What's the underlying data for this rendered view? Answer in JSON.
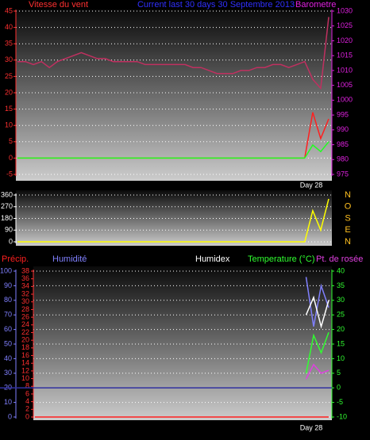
{
  "chart_data": [
    {
      "type": "line",
      "title": "Current last 30 days 30 Septembre 2013",
      "y_label": "Vitesse du vent",
      "y2_label": "Barometre",
      "annotation": "Day 28",
      "ylim": [
        -5,
        45
      ],
      "yticks": [
        -5,
        0,
        5,
        10,
        15,
        20,
        25,
        30,
        35,
        40,
        45
      ],
      "y_color": "#ff3030",
      "y2lim": [
        975,
        1030
      ],
      "y2ticks": [
        975,
        980,
        985,
        990,
        995,
        1000,
        1005,
        1010,
        1015,
        1020,
        1025,
        1030
      ],
      "y2_color": "#e020e0",
      "grid": true,
      "series": [
        {
          "color": "#ff2020",
          "values": [
            0,
            0,
            0,
            0,
            0,
            0,
            0,
            0,
            0,
            0,
            0,
            0,
            0,
            0,
            0,
            0,
            0,
            0,
            0,
            0,
            0,
            0,
            0,
            0,
            0,
            0,
            0,
            0,
            0,
            0,
            0,
            0,
            0,
            0,
            0,
            0,
            0,
            14,
            6,
            12
          ]
        },
        {
          "color": "#20ff20",
          "values": [
            0,
            0,
            0,
            0,
            0,
            0,
            0,
            0,
            0,
            0,
            0,
            0,
            0,
            0,
            0,
            0,
            0,
            0,
            0,
            0,
            0,
            0,
            0,
            0,
            0,
            0,
            0,
            0,
            0,
            0,
            0,
            0,
            0,
            0,
            0,
            0,
            0,
            4,
            2,
            5
          ]
        },
        {
          "color": "#c03060",
          "axis": "y2",
          "values": [
            1013,
            1013,
            1012,
            1013,
            1011,
            1013,
            1014,
            1015,
            1016,
            1015,
            1014,
            1014,
            1013,
            1013,
            1013,
            1013,
            1012,
            1012,
            1012,
            1012,
            1012,
            1012,
            1011,
            1011,
            1010,
            1009,
            1009,
            1009,
            1010,
            1010,
            1011,
            1011,
            1012,
            1012,
            1011,
            1012,
            1013,
            1007,
            1004,
            1028
          ]
        }
      ]
    },
    {
      "type": "line",
      "ylim": [
        0,
        360
      ],
      "yticks": [
        0,
        90,
        180,
        270,
        360
      ],
      "y_color": "#ffffff",
      "direction_labels": [
        "N",
        "E",
        "S",
        "O",
        "N"
      ],
      "direction_color": "#ffc020",
      "grid": true,
      "series": [
        {
          "color": "#ffff00",
          "values": [
            0,
            0,
            0,
            0,
            0,
            0,
            0,
            0,
            0,
            0,
            0,
            0,
            0,
            0,
            0,
            0,
            0,
            0,
            0,
            0,
            0,
            0,
            0,
            0,
            0,
            0,
            0,
            0,
            0,
            0,
            0,
            0,
            0,
            0,
            0,
            0,
            0,
            240,
            90,
            330
          ]
        }
      ]
    },
    {
      "type": "line",
      "annotation": "Day 28",
      "ylim": [
        0,
        100
      ],
      "yticks": [
        0,
        10,
        20,
        30,
        40,
        50,
        60,
        70,
        80,
        90,
        100
      ],
      "y_color": "#8080ff",
      "y2lim": [
        -10,
        40
      ],
      "y2ticks": [
        -10,
        -5,
        0,
        5,
        10,
        15,
        20,
        25,
        30,
        35,
        40
      ],
      "y2_color": "#30ff30",
      "y3lim": [
        0,
        38
      ],
      "y3ticks": [
        0,
        2,
        4,
        6,
        8,
        10,
        12,
        14,
        16,
        18,
        20,
        22,
        24,
        26,
        28,
        30,
        32,
        34,
        36,
        38
      ],
      "y3_color": "#ff3030",
      "grid": true,
      "series": [
        {
          "name": "Précip.",
          "color": "#ff2020",
          "axis": "y3",
          "values": [
            0,
            0,
            0,
            0,
            0,
            0,
            0,
            0,
            0,
            0,
            0,
            0,
            0,
            0,
            0,
            0,
            0,
            0,
            0,
            0,
            0,
            0,
            0,
            0,
            0,
            0,
            0,
            0,
            0,
            0,
            0,
            0,
            0,
            0,
            0,
            0,
            0,
            0,
            0,
            0
          ]
        },
        {
          "name": "Humidité",
          "color": "#8080ff",
          "values": [
            null,
            null,
            null,
            null,
            null,
            null,
            null,
            null,
            null,
            null,
            null,
            null,
            null,
            null,
            null,
            null,
            null,
            null,
            null,
            null,
            null,
            null,
            null,
            null,
            null,
            null,
            null,
            null,
            null,
            null,
            null,
            null,
            null,
            null,
            null,
            null,
            96,
            62,
            90,
            75
          ]
        },
        {
          "name": "Humidex",
          "color": "#ffffff",
          "axis": "y2",
          "values": [
            null,
            null,
            null,
            null,
            null,
            null,
            null,
            null,
            null,
            null,
            null,
            null,
            null,
            null,
            null,
            null,
            null,
            null,
            null,
            null,
            null,
            null,
            null,
            null,
            null,
            null,
            null,
            null,
            null,
            null,
            null,
            null,
            null,
            null,
            null,
            null,
            25,
            31,
            21,
            30
          ]
        },
        {
          "name": "Temperature (°C)",
          "color": "#30ff30",
          "axis": "y2",
          "values": [
            null,
            null,
            null,
            null,
            null,
            null,
            null,
            null,
            null,
            null,
            null,
            null,
            null,
            null,
            null,
            null,
            null,
            null,
            null,
            null,
            null,
            null,
            null,
            null,
            null,
            null,
            null,
            null,
            null,
            null,
            null,
            null,
            null,
            null,
            null,
            null,
            5,
            18,
            12,
            19
          ]
        },
        {
          "name": "Pt. de rosée",
          "color": "#e040e0",
          "axis": "y2",
          "values": [
            null,
            null,
            null,
            null,
            null,
            null,
            null,
            null,
            null,
            null,
            null,
            null,
            null,
            null,
            null,
            null,
            null,
            null,
            null,
            null,
            null,
            null,
            null,
            null,
            null,
            null,
            null,
            null,
            null,
            null,
            null,
            null,
            null,
            null,
            null,
            null,
            3,
            8,
            5,
            6
          ]
        }
      ]
    }
  ]
}
